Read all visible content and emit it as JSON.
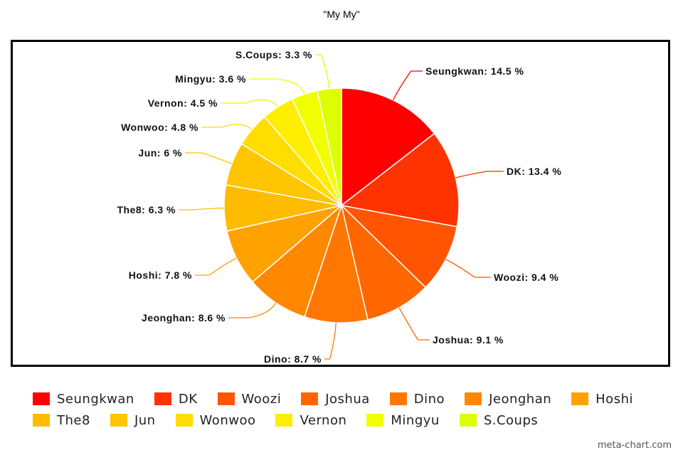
{
  "chart_data": {
    "type": "pie",
    "title": "\"My My\"",
    "unit": "%",
    "slices": [
      {
        "label": "Seungkwan",
        "value": 14.5,
        "color": "#ff0000"
      },
      {
        "label": "DK",
        "value": 13.4,
        "color": "#ff3300"
      },
      {
        "label": "Woozi",
        "value": 9.4,
        "color": "#ff5500"
      },
      {
        "label": "Joshua",
        "value": 9.1,
        "color": "#ff6600"
      },
      {
        "label": "Dino",
        "value": 8.7,
        "color": "#ff7700"
      },
      {
        "label": "Jeonghan",
        "value": 8.6,
        "color": "#ff8800"
      },
      {
        "label": "Hoshi",
        "value": 7.8,
        "color": "#ffa200"
      },
      {
        "label": "The8",
        "value": 6.3,
        "color": "#ffbb00"
      },
      {
        "label": "Jun",
        "value": 6,
        "color": "#ffc500"
      },
      {
        "label": "Wonwoo",
        "value": 4.8,
        "color": "#ffdd00"
      },
      {
        "label": "Vernon",
        "value": 4.5,
        "color": "#ffee00"
      },
      {
        "label": "Mingyu",
        "value": 3.6,
        "color": "#f2ff00"
      },
      {
        "label": "S.Coups",
        "value": 3.3,
        "color": "#ddff00"
      }
    ],
    "legend": {
      "position": "bottom"
    }
  },
  "labels": {
    "slices": [
      "Seungkwan: 14.5 %",
      "DK: 13.4 %",
      "Woozi: 9.4 %",
      "Joshua: 9.1 %",
      "Dino: 8.7 %",
      "Jeonghan: 8.6 %",
      "Hoshi: 7.8 %",
      "The8: 6.3 %",
      "Jun: 6 %",
      "Wonwoo: 4.8 %",
      "Vernon: 4.5 %",
      "Mingyu: 3.6 %",
      "S.Coups: 3.3 %"
    ]
  },
  "watermark": "meta-chart.com"
}
